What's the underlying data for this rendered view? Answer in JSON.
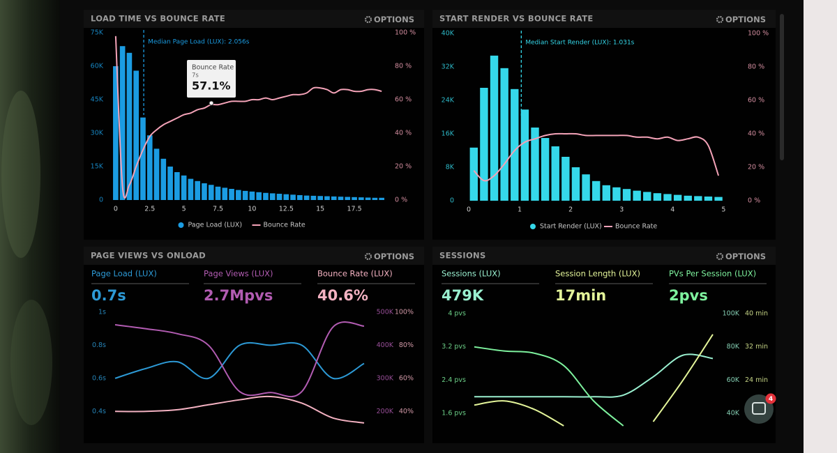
{
  "chart_data": [
    {
      "type": "bar",
      "title": "LOAD TIME VS BOUNCE RATE",
      "options": "OPTIONS",
      "x": [
        0,
        0.5,
        1,
        1.5,
        2,
        2.5,
        3,
        3.5,
        4,
        4.5,
        5,
        5.5,
        6,
        6.5,
        7,
        7.5,
        8,
        8.5,
        9,
        9.5,
        10,
        10.5,
        11,
        11.5,
        12,
        12.5,
        13,
        13.5,
        14,
        14.5,
        15,
        15.5,
        16,
        16.5,
        17,
        17.5,
        18,
        18.5,
        19,
        19.5
      ],
      "xlim": [
        -0.3,
        19.9
      ],
      "xticks": [
        0,
        2.5,
        5,
        7.5,
        10,
        12.5,
        15,
        17.5
      ],
      "ylim": [
        0,
        75000
      ],
      "yticks": [
        0,
        {
          "value": 15000,
          "label": "15K"
        },
        {
          "value": 30000,
          "label": "30K"
        },
        {
          "value": 45000,
          "label": "45K"
        },
        {
          "value": 60000,
          "label": "60K"
        },
        {
          "value": 75000,
          "label": "75K"
        }
      ],
      "y2lim": [
        0,
        100
      ],
      "y2ticks": [
        {
          "value": 0,
          "label": "0 %"
        },
        {
          "value": 20,
          "label": "20 %"
        },
        {
          "value": 40,
          "label": "40 %"
        },
        {
          "value": 60,
          "label": "60 %"
        },
        {
          "value": 80,
          "label": "80 %"
        },
        {
          "value": 100,
          "label": "100 %"
        }
      ],
      "series": [
        {
          "name": "Page Load (LUX)",
          "type": "bar",
          "color": "#1b9ce2",
          "values": [
            60000,
            69000,
            66000,
            58000,
            37000,
            29000,
            23000,
            18500,
            15000,
            12500,
            11000,
            9500,
            8500,
            7500,
            6800,
            6000,
            5500,
            5000,
            4500,
            4100,
            3800,
            3500,
            3200,
            3000,
            2800,
            2600,
            2400,
            2200,
            2000,
            1900,
            1800,
            1700,
            1600,
            1500,
            1400,
            1300,
            1200,
            1100,
            1000,
            1000
          ]
        },
        {
          "name": "Bounce Rate",
          "type": "line",
          "axis": "y2",
          "color": "#f4a3b8",
          "values": [
            98,
            8,
            9,
            20,
            30,
            38,
            42,
            45,
            47,
            49,
            51,
            52,
            54,
            55,
            57,
            57,
            58,
            59,
            59,
            59,
            60,
            60,
            61,
            60,
            61,
            62,
            63,
            63,
            64,
            67,
            67,
            66,
            64,
            66,
            66,
            65,
            65,
            66,
            66,
            65
          ]
        }
      ],
      "annotation": {
        "text": "Median Page Load (LUX): 2.056s",
        "x": 2.056
      },
      "tooltip": {
        "title": "Bounce Rate",
        "x_label": "7s",
        "value_label": "57.1%"
      }
    },
    {
      "type": "bar",
      "title": "START RENDER VS BOUNCE RATE",
      "options": "OPTIONS",
      "x": [
        0.1,
        0.3,
        0.5,
        0.7,
        0.9,
        1.1,
        1.3,
        1.5,
        1.7,
        1.9,
        2.1,
        2.3,
        2.5,
        2.7,
        2.9,
        3.1,
        3.3,
        3.5,
        3.7,
        3.9,
        4.1,
        4.3,
        4.5,
        4.7,
        4.9
      ],
      "xlim": [
        0,
        5.2
      ],
      "xticks": [
        0,
        1,
        2,
        3,
        4,
        5
      ],
      "ylim": [
        0,
        40000
      ],
      "yticks": [
        0,
        {
          "value": 8000,
          "label": "8K"
        },
        {
          "value": 16000,
          "label": "16K"
        },
        {
          "value": 24000,
          "label": "24K"
        },
        {
          "value": 32000,
          "label": "32K"
        },
        {
          "value": 40000,
          "label": "40K"
        }
      ],
      "y2lim": [
        0,
        100
      ],
      "y2ticks": [
        {
          "value": 0,
          "label": "0 %"
        },
        {
          "value": 20,
          "label": "20 %"
        },
        {
          "value": 40,
          "label": "40 %"
        },
        {
          "value": 60,
          "label": "60 %"
        },
        {
          "value": 80,
          "label": "80 %"
        },
        {
          "value": 100,
          "label": "100 %"
        }
      ],
      "series": [
        {
          "name": "Start Render (LUX)",
          "type": "bar",
          "color": "#35d8ea",
          "values": [
            12700,
            27000,
            34700,
            31700,
            26700,
            21800,
            17500,
            15000,
            13000,
            10500,
            8000,
            6300,
            4700,
            3700,
            3200,
            2800,
            2400,
            2100,
            1800,
            1600,
            1400,
            1200,
            1100,
            1000,
            900
          ]
        },
        {
          "name": "Bounce Rate",
          "type": "line",
          "axis": "y2",
          "color": "#f4a3b8",
          "values": [
            18,
            12,
            15,
            22,
            30,
            35,
            37,
            39,
            40,
            40,
            40,
            39,
            39,
            39,
            39,
            39,
            38,
            38,
            37,
            38,
            36,
            37,
            38,
            33,
            15
          ]
        }
      ],
      "annotation": {
        "text": "Median Start Render (LUX): 1.031s",
        "x": 1.031
      }
    },
    {
      "type": "line",
      "title": "PAGE VIEWS VS ONLOAD",
      "options": "OPTIONS",
      "categories": [
        null,
        null,
        null,
        null,
        null,
        null,
        null,
        null,
        null
      ],
      "ylim": [
        0.3,
        1
      ],
      "yticks": [
        {
          "value": 0.4,
          "label": "0.4s"
        },
        {
          "value": 0.6,
          "label": "0.6s"
        },
        {
          "value": 0.8,
          "label": "0.8s"
        },
        {
          "value": 1,
          "label": "1s"
        }
      ],
      "y2lim": [
        150000,
        500000
      ],
      "y2ticks": [
        {
          "value": 200000,
          "label": "200K"
        },
        {
          "value": 300000,
          "label": "300K"
        },
        {
          "value": 400000,
          "label": "400K"
        },
        {
          "value": 500000,
          "label": "500K"
        }
      ],
      "y3lim": [
        30,
        100
      ],
      "y3ticks": [
        {
          "value": 40,
          "label": "40%"
        },
        {
          "value": 60,
          "label": "60%"
        },
        {
          "value": 80,
          "label": "80%"
        },
        {
          "value": 100,
          "label": "100%"
        }
      ],
      "series": [
        {
          "name": "Page Load (LUX)",
          "value_label": "0.7s",
          "axis": "y",
          "color": "#2d9ad6",
          "values": [
            0.6,
            0.66,
            0.7,
            0.6,
            0.8,
            0.8,
            0.8,
            0.6,
            0.69
          ]
        },
        {
          "name": "Page Views (LUX)",
          "value_label": "2.7Mpvs",
          "axis": "y2",
          "color": "#b25cb2",
          "values": [
            462000,
            450000,
            435000,
            400000,
            260000,
            257000,
            260000,
            455000,
            458000
          ]
        },
        {
          "name": "Bounce Rate (LUX)",
          "value_label": "40.6%",
          "axis": "y3",
          "color": "#f4b2c2",
          "values": [
            40,
            40,
            41,
            44,
            47,
            49,
            45,
            36,
            33
          ]
        }
      ]
    },
    {
      "type": "line",
      "title": "SESSIONS",
      "options": "OPTIONS",
      "categories": [
        null,
        null,
        null,
        null,
        null,
        null,
        null,
        null,
        null
      ],
      "ylim": [
        1.2,
        4
      ],
      "yticks": [
        {
          "value": 1.6,
          "label": "1.6 pvs"
        },
        {
          "value": 2.4,
          "label": "2.4 pvs"
        },
        {
          "value": 3.2,
          "label": "3.2 pvs"
        },
        {
          "value": 4,
          "label": "4 pvs"
        }
      ],
      "y2lim": [
        30000,
        100000
      ],
      "y2ticks": [
        {
          "value": 40000,
          "label": "40K"
        },
        {
          "value": 60000,
          "label": "60K"
        },
        {
          "value": 80000,
          "label": "80K"
        },
        {
          "value": 100000,
          "label": "100K"
        }
      ],
      "y3lim": [
        12,
        40
      ],
      "y3ticks": [
        {
          "value": 24,
          "label": "24 min"
        },
        {
          "value": 32,
          "label": "32 min"
        },
        {
          "value": 40,
          "label": "40 min"
        }
      ],
      "series": [
        {
          "name": "Sessions (LUX)",
          "value_label": "479K",
          "axis": "y2",
          "color": "#9af0d0",
          "values": [
            50000,
            50000,
            50000,
            50000,
            50000,
            51000,
            62000,
            75000,
            73000
          ]
        },
        {
          "name": "Session Length (LUX)",
          "value_label": "17min",
          "axis": "y3",
          "color": "#e4f59a",
          "values": [
            18,
            19,
            17,
            13,
            null,
            null,
            14,
            24,
            35
          ]
        },
        {
          "name": "PVs Per Session (LUX)",
          "value_label": "2pvs",
          "axis": "y",
          "color": "#7ef29e",
          "values": [
            3.2,
            3.1,
            3.05,
            2.75,
            1.9,
            1.3,
            null,
            null,
            null
          ]
        }
      ]
    }
  ],
  "chat_badge": "4"
}
